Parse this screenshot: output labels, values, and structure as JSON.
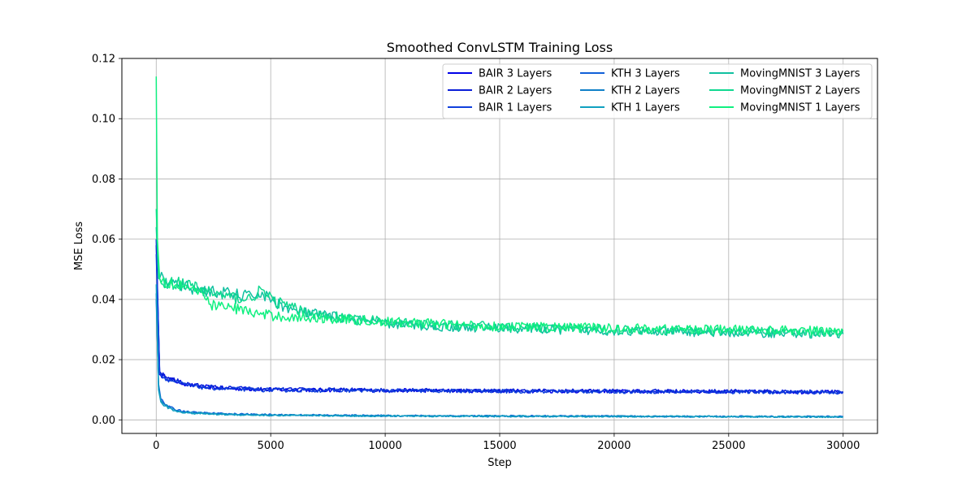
{
  "chart_data": {
    "type": "line",
    "title": "Smoothed ConvLSTM Training Loss",
    "xlabel": "Step",
    "ylabel": "MSE Loss",
    "xlim": [
      -1500,
      31500
    ],
    "ylim": [
      -0.0045,
      0.12
    ],
    "xticks": [
      0,
      5000,
      10000,
      15000,
      20000,
      25000,
      30000
    ],
    "xtick_labels": [
      "0",
      "5000",
      "10000",
      "15000",
      "20000",
      "25000",
      "30000"
    ],
    "yticks": [
      0.0,
      0.02,
      0.04,
      0.06,
      0.08,
      0.1,
      0.12
    ],
    "ytick_labels": [
      "0.00",
      "0.02",
      "0.04",
      "0.06",
      "0.08",
      "0.10",
      "0.12"
    ],
    "grid": true,
    "legend_position": "top-right",
    "legend_columns": 3,
    "series": [
      {
        "name": "BAIR 3 Layers",
        "color": "#0000e8",
        "points": [
          [
            0,
            0.06
          ],
          [
            150,
            0.015
          ],
          [
            300,
            0.0145
          ],
          [
            600,
            0.0135
          ],
          [
            1000,
            0.0125
          ],
          [
            1500,
            0.0115
          ],
          [
            2000,
            0.011
          ],
          [
            3000,
            0.0105
          ],
          [
            5000,
            0.01
          ],
          [
            10000,
            0.0098
          ],
          [
            15000,
            0.0096
          ],
          [
            20000,
            0.0095
          ],
          [
            25000,
            0.0094
          ],
          [
            30000,
            0.0092
          ]
        ]
      },
      {
        "name": "BAIR 2 Layers",
        "color": "#0a1ed8",
        "points": [
          [
            0,
            0.058
          ],
          [
            150,
            0.016
          ],
          [
            300,
            0.0148
          ],
          [
            600,
            0.0137
          ],
          [
            1000,
            0.0127
          ],
          [
            1500,
            0.0117
          ],
          [
            2000,
            0.0112
          ],
          [
            3000,
            0.0106
          ],
          [
            5000,
            0.0101
          ],
          [
            10000,
            0.0099
          ],
          [
            15000,
            0.0097
          ],
          [
            20000,
            0.0096
          ],
          [
            25000,
            0.0095
          ],
          [
            30000,
            0.0093
          ]
        ]
      },
      {
        "name": "BAIR 1 Layers",
        "color": "#1040dc",
        "points": [
          [
            0,
            0.055
          ],
          [
            150,
            0.0155
          ],
          [
            300,
            0.0142
          ],
          [
            600,
            0.0132
          ],
          [
            1000,
            0.0122
          ],
          [
            1500,
            0.0113
          ],
          [
            2000,
            0.0108
          ],
          [
            3000,
            0.0103
          ],
          [
            5000,
            0.0099
          ],
          [
            10000,
            0.0097
          ],
          [
            15000,
            0.0095
          ],
          [
            20000,
            0.0094
          ],
          [
            25000,
            0.0093
          ],
          [
            30000,
            0.0091
          ]
        ]
      },
      {
        "name": "KTH 3 Layers",
        "color": "#1060d8",
        "points": [
          [
            0,
            0.04
          ],
          [
            100,
            0.012
          ],
          [
            200,
            0.007
          ],
          [
            400,
            0.005
          ],
          [
            800,
            0.0035
          ],
          [
            1500,
            0.0025
          ],
          [
            3000,
            0.002
          ],
          [
            5000,
            0.0017
          ],
          [
            10000,
            0.0014
          ],
          [
            15000,
            0.0013
          ],
          [
            20000,
            0.0012
          ],
          [
            25000,
            0.0011
          ],
          [
            30000,
            0.0011
          ]
        ]
      },
      {
        "name": "KTH 2 Layers",
        "color": "#1080c8",
        "points": [
          [
            0,
            0.042
          ],
          [
            100,
            0.011
          ],
          [
            200,
            0.0065
          ],
          [
            400,
            0.0048
          ],
          [
            800,
            0.0033
          ],
          [
            1500,
            0.0024
          ],
          [
            3000,
            0.0019
          ],
          [
            5000,
            0.0016
          ],
          [
            10000,
            0.0013
          ],
          [
            15000,
            0.0012
          ],
          [
            20000,
            0.0012
          ],
          [
            25000,
            0.0011
          ],
          [
            30000,
            0.001
          ]
        ]
      },
      {
        "name": "KTH 1 Layers",
        "color": "#10a0c0",
        "points": [
          [
            0,
            0.045
          ],
          [
            100,
            0.01
          ],
          [
            200,
            0.006
          ],
          [
            400,
            0.0045
          ],
          [
            800,
            0.003
          ],
          [
            1500,
            0.0022
          ],
          [
            3000,
            0.0018
          ],
          [
            5000,
            0.0015
          ],
          [
            10000,
            0.0013
          ],
          [
            15000,
            0.0012
          ],
          [
            20000,
            0.0011
          ],
          [
            25000,
            0.0011
          ],
          [
            30000,
            0.001
          ]
        ]
      },
      {
        "name": "MovingMNIST 3 Layers",
        "color": "#10c0a0",
        "points": [
          [
            0,
            0.064
          ],
          [
            100,
            0.048
          ],
          [
            300,
            0.046
          ],
          [
            800,
            0.045
          ],
          [
            1400,
            0.044
          ],
          [
            2000,
            0.043
          ],
          [
            3000,
            0.042
          ],
          [
            4000,
            0.041
          ],
          [
            4500,
            0.042
          ],
          [
            5000,
            0.04
          ],
          [
            6000,
            0.036
          ],
          [
            7000,
            0.035
          ],
          [
            8000,
            0.034
          ],
          [
            10000,
            0.032
          ],
          [
            12000,
            0.031
          ],
          [
            15000,
            0.0305
          ],
          [
            20000,
            0.0295
          ],
          [
            25000,
            0.029
          ],
          [
            30000,
            0.0285
          ]
        ]
      },
      {
        "name": "MovingMNIST 2 Layers",
        "color": "#10d890",
        "points": [
          [
            0,
            0.07
          ],
          [
            100,
            0.047
          ],
          [
            300,
            0.046
          ],
          [
            800,
            0.0455
          ],
          [
            1400,
            0.0445
          ],
          [
            2000,
            0.0435
          ],
          [
            3000,
            0.041
          ],
          [
            4000,
            0.04
          ],
          [
            4600,
            0.043
          ],
          [
            5000,
            0.04
          ],
          [
            6000,
            0.037
          ],
          [
            7000,
            0.035
          ],
          [
            8000,
            0.034
          ],
          [
            10000,
            0.0325
          ],
          [
            12000,
            0.0315
          ],
          [
            15000,
            0.031
          ],
          [
            20000,
            0.03
          ],
          [
            25000,
            0.0295
          ],
          [
            30000,
            0.029
          ]
        ]
      },
      {
        "name": "MovingMNIST 1 Layers",
        "color": "#10f080",
        "points": [
          [
            0,
            0.114
          ],
          [
            50,
            0.06
          ],
          [
            150,
            0.047
          ],
          [
            400,
            0.046
          ],
          [
            1000,
            0.045
          ],
          [
            1500,
            0.044
          ],
          [
            2000,
            0.041
          ],
          [
            2500,
            0.038
          ],
          [
            3500,
            0.037
          ],
          [
            4500,
            0.035
          ],
          [
            6000,
            0.034
          ],
          [
            8000,
            0.0335
          ],
          [
            10000,
            0.0325
          ],
          [
            12000,
            0.032
          ],
          [
            15000,
            0.031
          ],
          [
            20000,
            0.0305
          ],
          [
            25000,
            0.03
          ],
          [
            30000,
            0.0295
          ]
        ]
      }
    ]
  }
}
